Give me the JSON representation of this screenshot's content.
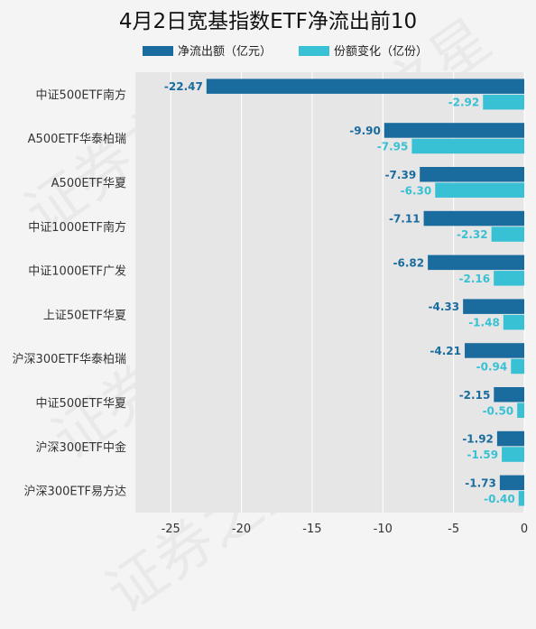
{
  "chart_data": {
    "type": "bar",
    "orientation": "horizontal",
    "title": "4月2日宽基指数ETF净流出前10",
    "categories": [
      "中证500ETF南方",
      "A500ETF华泰柏瑞",
      "A500ETF华夏",
      "中证1000ETF南方",
      "中证1000ETF广发",
      "上证50ETF华夏",
      "沪深300ETF华泰柏瑞",
      "中证500ETF华夏",
      "沪深300ETF中金",
      "沪深300ETF易方达"
    ],
    "series": [
      {
        "name": "净流出额（亿元）",
        "color": "#1a6c9e",
        "values": [
          -22.47,
          -9.9,
          -7.39,
          -7.11,
          -6.82,
          -4.33,
          -4.21,
          -2.15,
          -1.92,
          -1.73
        ]
      },
      {
        "name": "份额变化（亿份）",
        "color": "#38c1d4",
        "values": [
          -2.92,
          -7.95,
          -6.3,
          -2.32,
          -2.16,
          -1.48,
          -0.94,
          -0.5,
          -1.59,
          -0.4
        ]
      }
    ],
    "xlim": [
      -27.5,
      0
    ],
    "xticks": [
      -25,
      -20,
      -15,
      -10,
      -5,
      0
    ],
    "grid": true,
    "legend": "top-center",
    "watermark": "证券之星"
  }
}
